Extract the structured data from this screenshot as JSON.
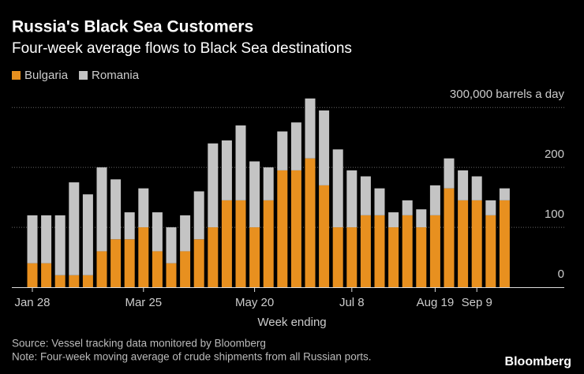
{
  "chart_data": {
    "type": "stacked_bar",
    "title": "Russia's Black Sea Customers",
    "subtitle": "Four-week average flows to Black Sea destinations",
    "x_label": "Week ending",
    "source": "Source: Vessel tracking data monitored by Bloomberg",
    "note": "Note: Four-week moving average of crude shipments from all Russian ports.",
    "brand": "Bloomberg",
    "categories": [
      "Jan 28",
      null,
      null,
      null,
      null,
      null,
      null,
      null,
      "Mar 25",
      null,
      null,
      null,
      null,
      null,
      null,
      null,
      "May 20",
      null,
      null,
      null,
      null,
      null,
      null,
      "Jul 8",
      null,
      null,
      null,
      null,
      null,
      "Aug 19",
      null,
      null,
      "Sep 9",
      null,
      null
    ],
    "series": [
      {
        "name": "Bulgaria",
        "color": "#e8901f",
        "values": [
          40,
          40,
          20,
          20,
          20,
          60,
          80,
          80,
          100,
          60,
          40,
          60,
          80,
          100,
          145,
          145,
          100,
          145,
          195,
          195,
          215,
          170,
          100,
          100,
          120,
          120,
          100,
          120,
          100,
          120,
          165,
          145,
          145,
          120,
          145
        ]
      },
      {
        "name": "Romania",
        "color": "#c4c4c4",
        "values": [
          80,
          80,
          100,
          155,
          135,
          140,
          100,
          45,
          65,
          65,
          60,
          60,
          80,
          140,
          100,
          125,
          110,
          55,
          65,
          80,
          100,
          125,
          130,
          95,
          65,
          45,
          25,
          25,
          30,
          50,
          50,
          50,
          40,
          25,
          20
        ]
      }
    ],
    "ylim": [
      0,
      320
    ],
    "yticks": [
      0,
      100,
      200,
      {
        "value": 300,
        "label": "300,000 barrels a day"
      }
    ],
    "grid": true
  }
}
